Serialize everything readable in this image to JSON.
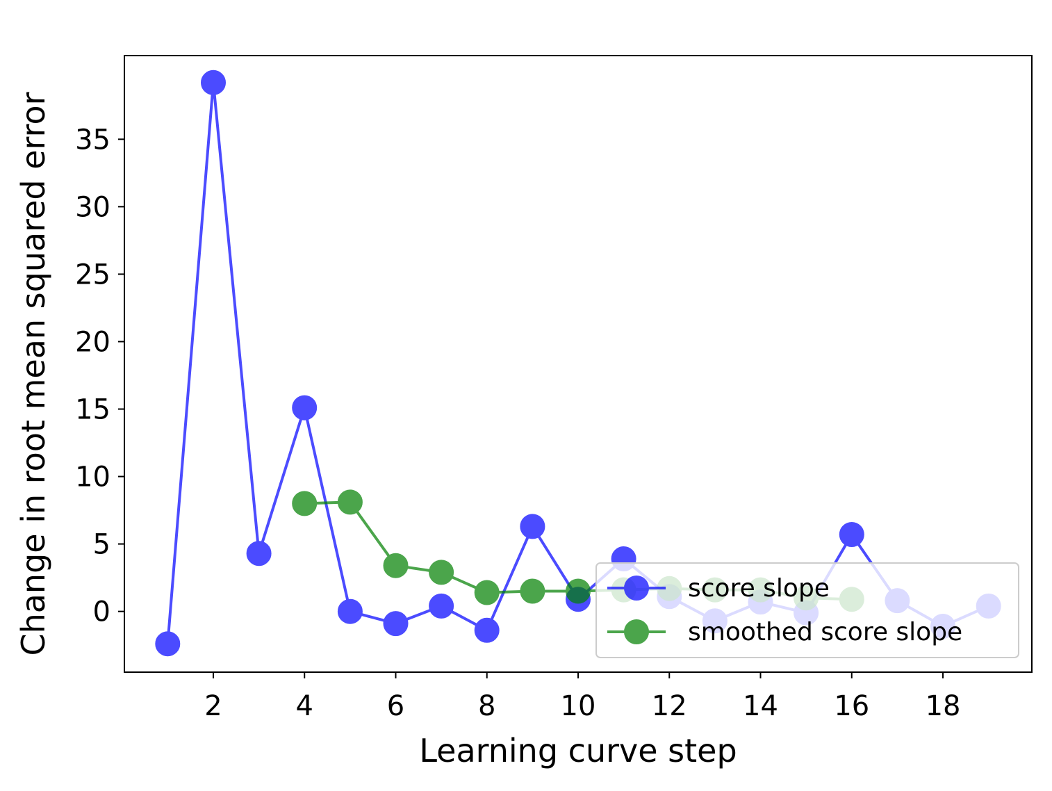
{
  "chart_data": {
    "type": "line",
    "xlabel": "Learning curve step",
    "ylabel": "Change in root mean squared error",
    "xlim": [
      0.05,
      19.95
    ],
    "ylim": [
      -4.5,
      41.2
    ],
    "xticks": [
      2,
      4,
      6,
      8,
      10,
      12,
      14,
      16,
      18
    ],
    "yticks": [
      0,
      5,
      10,
      15,
      20,
      25,
      30,
      35
    ],
    "grid": false,
    "legend_position": "lower-right",
    "series": [
      {
        "name": "score slope",
        "color": "#0000ff",
        "x": [
          1,
          2,
          3,
          4,
          5,
          6,
          7,
          8,
          9,
          10,
          11,
          12,
          13,
          14,
          15,
          16,
          17,
          18,
          19
        ],
        "y": [
          -2.4,
          39.2,
          4.3,
          15.1,
          0.0,
          -0.9,
          0.4,
          -1.4,
          6.3,
          0.9,
          3.9,
          1.1,
          -0.7,
          0.7,
          -0.1,
          5.7,
          0.8,
          -1.1,
          0.4
        ]
      },
      {
        "name": "smoothed score slope",
        "color": "#008000",
        "x": [
          4,
          5,
          6,
          7,
          8,
          9,
          10,
          11,
          12,
          13,
          14,
          15,
          16
        ],
        "y": [
          8.0,
          8.1,
          3.4,
          2.9,
          1.4,
          1.5,
          1.5,
          1.6,
          1.7,
          1.6,
          1.6,
          1.0,
          0.9
        ]
      }
    ]
  }
}
